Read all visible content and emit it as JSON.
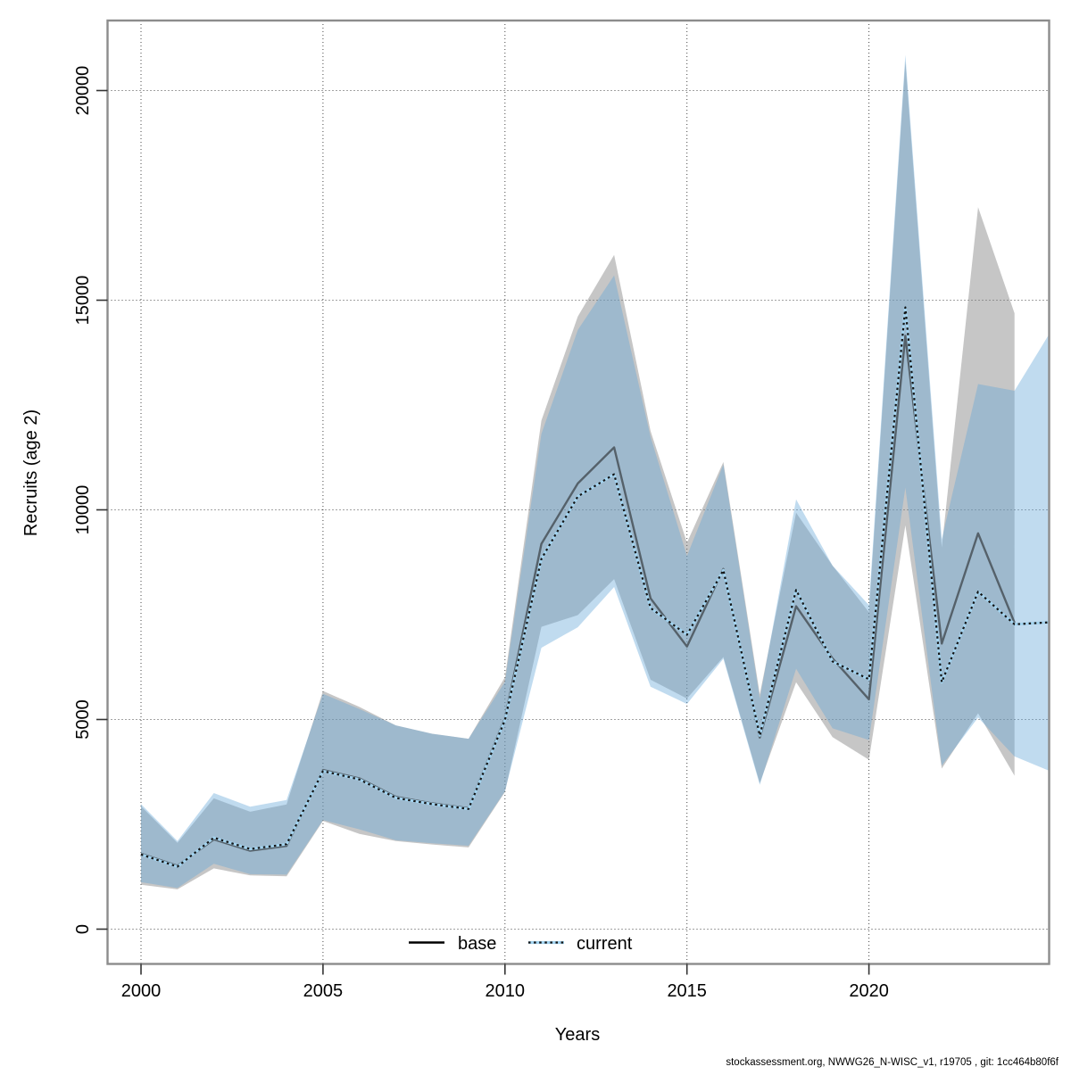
{
  "chart_data": {
    "type": "line",
    "title": "",
    "xlabel": "Years",
    "ylabel": "Recruits (age 2)",
    "footer": "stockassessment.org, NWWG26_N-WISC_v1, r19705 , git: 1cc464b80f6f",
    "grid": true,
    "legend_position": "bottom-center-inside",
    "x_ticks": [
      2000,
      2005,
      2010,
      2015,
      2020
    ],
    "y_ticks": [
      0,
      5000,
      10000,
      15000,
      20000
    ],
    "xlim": [
      1999.1,
      2024.95
    ],
    "ylim": [
      -820,
      21670
    ],
    "legend": [
      {
        "label": "base",
        "style": "solid"
      },
      {
        "label": "current",
        "style": "dotted"
      }
    ],
    "series": [
      {
        "name": "base",
        "line_style": "solid",
        "line_color": "#55616a",
        "legend_sample_color": "#000000",
        "band_color": "rgba(128,128,128,0.45)",
        "years": [
          2000,
          2001,
          2002,
          2003,
          2004,
          2005,
          2006,
          2007,
          2008,
          2009,
          2010,
          2011,
          2012,
          2013,
          2014,
          2015,
          2016,
          2017,
          2018,
          2019,
          2020,
          2021,
          2022,
          2023,
          2024
        ],
        "values": [
          1800,
          1510,
          2140,
          1870,
          1985,
          3795,
          3595,
          3155,
          3000,
          2885,
          5030,
          9190,
          10630,
          11490,
          7890,
          6740,
          8590,
          4570,
          7700,
          6455,
          5480,
          14150,
          6810,
          9440,
          7310
        ],
        "band_lower": [
          1060,
          950,
          1450,
          1280,
          1260,
          2580,
          2270,
          2100,
          2020,
          1950,
          3270,
          7210,
          7490,
          8350,
          5950,
          5500,
          6490,
          3480,
          5890,
          4580,
          4040,
          9630,
          3830,
          5150,
          3660
        ],
        "band_upper": [
          2930,
          2060,
          3120,
          2800,
          2975,
          5680,
          5300,
          4860,
          4660,
          4540,
          6010,
          12130,
          14610,
          16080,
          11880,
          9220,
          11140,
          5600,
          9930,
          8670,
          7560,
          20700,
          9100,
          17220,
          14690
        ]
      },
      {
        "name": "current",
        "line_style": "dotted",
        "line_color": "#141414",
        "line_underlay_color": "#a3d3ef",
        "band_color": "rgba(98,166,214,0.40)",
        "years": [
          2000,
          2001,
          2002,
          2003,
          2004,
          2005,
          2006,
          2007,
          2008,
          2009,
          2010,
          2011,
          2012,
          2013,
          2014,
          2015,
          2016,
          2017,
          2018,
          2019,
          2020,
          2021,
          2022,
          2023,
          2024,
          2025
        ],
        "values": [
          1780,
          1490,
          2180,
          1910,
          2025,
          3770,
          3570,
          3130,
          2980,
          2865,
          4990,
          8830,
          10320,
          10850,
          7660,
          7020,
          8560,
          4620,
          8090,
          6385,
          5960,
          14830,
          5890,
          8050,
          7270,
          7320
        ],
        "band_lower": [
          1120,
          980,
          1560,
          1310,
          1300,
          2600,
          2380,
          2120,
          2050,
          1990,
          3290,
          6710,
          7200,
          8160,
          5780,
          5370,
          6450,
          3440,
          6210,
          4790,
          4510,
          10530,
          3900,
          5050,
          4120,
          3760
        ],
        "band_upper": [
          2980,
          2100,
          3245,
          2920,
          3080,
          5610,
          5250,
          4860,
          4660,
          4540,
          5900,
          11810,
          14290,
          15590,
          11740,
          8900,
          11080,
          5500,
          10250,
          8670,
          7730,
          20850,
          9300,
          13000,
          12840,
          14260
        ]
      }
    ]
  },
  "style": {
    "border_color": "#8c8c8c",
    "grid_color": "#444444",
    "tick_color": "#333333"
  }
}
